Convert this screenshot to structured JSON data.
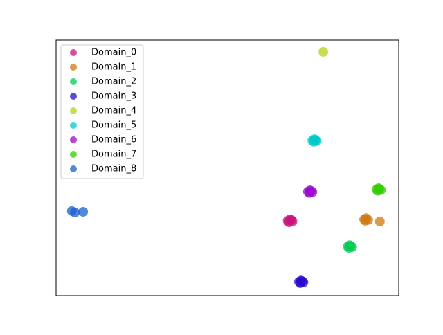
{
  "chart_data": {
    "type": "scatter",
    "xlim": [
      0,
      100
    ],
    "ylim": [
      0,
      100
    ],
    "legend": "upper left",
    "series": [
      {
        "name": "Domain_0",
        "color": "#c8137f",
        "x": [
          67.6,
          68.3,
          69.0,
          68.0,
          68.7
        ],
        "y": [
          29.3,
          29.8,
          29.1,
          28.7,
          29.6
        ]
      },
      {
        "name": "Domain_1",
        "color": "#d07a10",
        "x": [
          89.9,
          90.5,
          91.1,
          90.2,
          94.5
        ],
        "y": [
          29.8,
          30.3,
          29.6,
          29.3,
          29.0
        ]
      },
      {
        "name": "Domain_2",
        "color": "#00cc55",
        "x": [
          85.1,
          85.7,
          86.4,
          85.5,
          86.0
        ],
        "y": [
          19.2,
          19.7,
          19.0,
          18.7,
          19.4
        ]
      },
      {
        "name": "Domain_3",
        "color": "#2a0acc",
        "x": [
          70.9,
          71.5,
          72.2,
          71.3,
          71.8
        ],
        "y": [
          5.4,
          5.9,
          5.2,
          4.9,
          5.6
        ]
      },
      {
        "name": "Domain_4",
        "color": "#b5d11e",
        "x": [
          78.0
        ],
        "y": [
          95.4
        ]
      },
      {
        "name": "Domain_5",
        "color": "#00c8c8",
        "x": [
          74.8,
          75.4,
          76.1,
          75.2,
          75.7
        ],
        "y": [
          60.7,
          61.2,
          60.5,
          60.2,
          60.9
        ]
      },
      {
        "name": "Domain_6",
        "color": "#9a0acc",
        "x": [
          73.5,
          74.1,
          74.8,
          73.9,
          74.4
        ],
        "y": [
          40.7,
          41.2,
          40.5,
          40.2,
          40.9
        ]
      },
      {
        "name": "Domain_7",
        "color": "#33cc00",
        "x": [
          93.5,
          94.1,
          94.8,
          93.9,
          94.4
        ],
        "y": [
          41.5,
          42.0,
          41.3,
          41.0,
          41.7
        ]
      },
      {
        "name": "Domain_8",
        "color": "#1a5fcc",
        "x": [
          4.6,
          5.5,
          7.9
        ],
        "y": [
          33.1,
          32.5,
          32.8
        ]
      }
    ]
  }
}
